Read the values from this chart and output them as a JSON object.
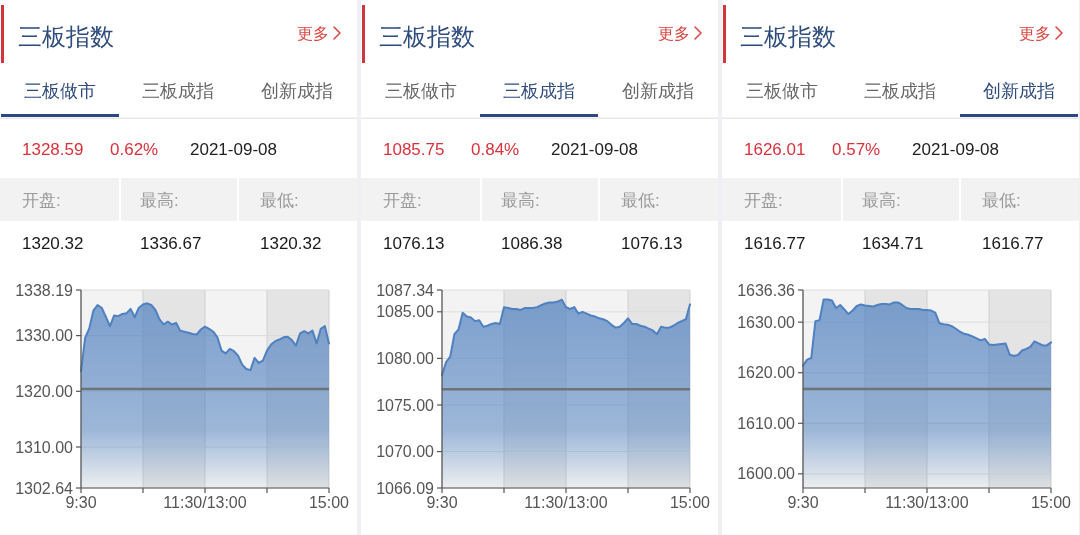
{
  "chart_data": [
    {
      "type": "area",
      "title": "三板指数",
      "annotations": [
        "更多",
        "三板做市",
        "三板成指",
        "创新成指",
        "1328.59",
        "0.62%",
        "2021-09-08",
        "开盘:",
        "最高:",
        "最低:",
        "1320.32",
        "1336.67",
        "1320.32"
      ],
      "categories": [
        "9:30",
        null,
        null,
        null,
        null,
        null,
        null,
        null,
        null,
        null,
        null,
        null,
        null,
        null,
        null,
        null,
        null,
        null,
        null,
        null,
        null,
        null,
        null,
        null,
        null,
        null,
        null,
        null,
        null,
        null,
        "11:30/13:00",
        null,
        null,
        null,
        null,
        null,
        null,
        null,
        null,
        null,
        null,
        null,
        null,
        null,
        null,
        null,
        null,
        null,
        null,
        null,
        null,
        null,
        null,
        null,
        null,
        null,
        null,
        null,
        null,
        null,
        "15:00"
      ],
      "series": [
        {
          "color": "#4f80c0",
          "values": [
            1323.6,
            1329.6,
            1331.3,
            1334.5,
            1335.5,
            1335.0,
            1333.4,
            1331.7,
            1333.6,
            1333.5,
            1333.9,
            1334.0,
            1334.8,
            1333.3,
            1335.0,
            1335.6,
            1335.8,
            1335.5,
            1334.6,
            1332.9,
            1332.0,
            1332.5,
            1332.0,
            1332.3,
            1330.9,
            1330.7,
            1330.5,
            1330.3,
            1330.2,
            1331.1,
            1331.6,
            1331.2,
            1330.7,
            1329.7,
            1327.3,
            1326.8,
            1327.6,
            1327.2,
            1326.4,
            1324.8,
            1324.0,
            1323.8,
            1326.0,
            1325.1,
            1325.5,
            1327.3,
            1328.4,
            1329.0,
            1329.3,
            1329.7,
            1329.8,
            1329.2,
            1328.2,
            1330.4,
            1330.8,
            1330.4,
            1330.9,
            1328.6,
            1331.2,
            1331.7,
            1328.6
          ]
        }
      ],
      "ylim": [
        1302.64,
        1338.19
      ],
      "yticks": [
        1302.64,
        {
          "value": 1310,
          "label": "1310.00"
        },
        {
          "value": 1320,
          "label": "1320.00"
        },
        {
          "value": 1330,
          "label": "1330.00"
        },
        1338.19
      ],
      "grid": true,
      "ref_lines": [
        {
          "axis": "y",
          "value": 1320.4,
          "color": "#6e7378"
        }
      ]
    },
    {
      "type": "area",
      "title": "三板指数",
      "annotations": [
        "更多",
        "三板做市",
        "三板成指",
        "创新成指",
        "1085.75",
        "0.84%",
        "2021-09-08",
        "开盘:",
        "最高:",
        "最低:",
        "1076.13",
        "1086.38",
        "1076.13"
      ],
      "categories": [
        "9:30",
        null,
        null,
        null,
        null,
        null,
        null,
        null,
        null,
        null,
        null,
        null,
        null,
        null,
        null,
        null,
        null,
        null,
        null,
        null,
        null,
        null,
        null,
        null,
        null,
        null,
        null,
        null,
        null,
        null,
        "11:30/13:00",
        null,
        null,
        null,
        null,
        null,
        null,
        null,
        null,
        null,
        null,
        null,
        null,
        null,
        null,
        null,
        null,
        null,
        null,
        null,
        null,
        null,
        null,
        null,
        null,
        null,
        null,
        null,
        null,
        null,
        "15:00"
      ],
      "series": [
        {
          "color": "#4f80c0",
          "values": [
            1078.2,
            1079.6,
            1080.2,
            1082.6,
            1083.1,
            1084.9,
            1084.5,
            1084.4,
            1084.0,
            1084.1,
            1083.4,
            1083.5,
            1083.7,
            1083.8,
            1083.7,
            1085.5,
            1085.4,
            1085.3,
            1085.3,
            1085.2,
            1085.4,
            1085.4,
            1085.4,
            1085.5,
            1085.7,
            1085.9,
            1086.0,
            1086.0,
            1086.1,
            1086.3,
            1085.5,
            1085.3,
            1085.5,
            1084.8,
            1085.0,
            1084.8,
            1084.6,
            1084.5,
            1084.3,
            1084.2,
            1084.0,
            1083.6,
            1083.3,
            1083.4,
            1083.8,
            1084.3,
            1083.7,
            1083.7,
            1083.5,
            1083.4,
            1083.2,
            1083.0,
            1082.6,
            1083.4,
            1083.3,
            1083.3,
            1083.5,
            1083.8,
            1084.0,
            1084.2,
            1085.8
          ]
        }
      ],
      "ylim": [
        1066.09,
        1087.34
      ],
      "yticks": [
        1066.09,
        {
          "value": 1070,
          "label": "1070.00"
        },
        {
          "value": 1075,
          "label": "1075.00"
        },
        {
          "value": 1080,
          "label": "1080.00"
        },
        {
          "value": 1085,
          "label": "1085.00"
        },
        1087.34
      ],
      "grid": true,
      "ref_lines": [
        {
          "axis": "y",
          "value": 1076.7,
          "color": "#6e7378"
        }
      ]
    },
    {
      "type": "area",
      "title": "三板指数",
      "annotations": [
        "更多",
        "三板做市",
        "三板成指",
        "创新成指",
        "1626.01",
        "0.57%",
        "2021-09-08",
        "开盘:",
        "最高:",
        "最低:",
        "1616.77",
        "1634.71",
        "1616.77"
      ],
      "categories": [
        "9:30",
        null,
        null,
        null,
        null,
        null,
        null,
        null,
        null,
        null,
        null,
        null,
        null,
        null,
        null,
        null,
        null,
        null,
        null,
        null,
        null,
        null,
        null,
        null,
        null,
        null,
        null,
        null,
        null,
        null,
        "11:30/13:00",
        null,
        null,
        null,
        null,
        null,
        null,
        null,
        null,
        null,
        null,
        null,
        null,
        null,
        null,
        null,
        null,
        null,
        null,
        null,
        null,
        null,
        null,
        null,
        null,
        null,
        null,
        null,
        null,
        null,
        "15:00"
      ],
      "series": [
        {
          "color": "#4f80c0",
          "values": [
            1621.4,
            1622.6,
            1622.9,
            1630.2,
            1630.4,
            1634.5,
            1634.5,
            1634.3,
            1632.8,
            1633.4,
            1632.5,
            1631.6,
            1632.3,
            1633.2,
            1633.5,
            1633.3,
            1633.2,
            1633.1,
            1633.4,
            1633.6,
            1633.6,
            1633.5,
            1633.9,
            1633.9,
            1633.4,
            1632.8,
            1632.6,
            1632.6,
            1632.6,
            1632.4,
            1632.4,
            1632.3,
            1631.9,
            1629.8,
            1629.6,
            1629.5,
            1629.2,
            1628.7,
            1628.1,
            1627.7,
            1627.5,
            1627.2,
            1626.8,
            1626.4,
            1626.7,
            1625.6,
            1625.5,
            1625.6,
            1625.7,
            1625.8,
            1623.6,
            1623.3,
            1623.5,
            1624.4,
            1624.7,
            1625.1,
            1626.2,
            1625.8,
            1625.4,
            1625.4,
            1626.0
          ]
        }
      ],
      "ylim": [
        1597.2,
        1636.36
      ],
      "yticks": [
        {
          "value": 1600,
          "label": "1600.00"
        },
        {
          "value": 1610,
          "label": "1610.00"
        },
        {
          "value": 1620,
          "label": "1620.00"
        },
        {
          "value": 1630,
          "label": "1630.00"
        },
        1636.36
      ],
      "grid": true,
      "ref_lines": [
        {
          "axis": "y",
          "value": 1616.8,
          "color": "#6e7378"
        }
      ]
    }
  ]
}
